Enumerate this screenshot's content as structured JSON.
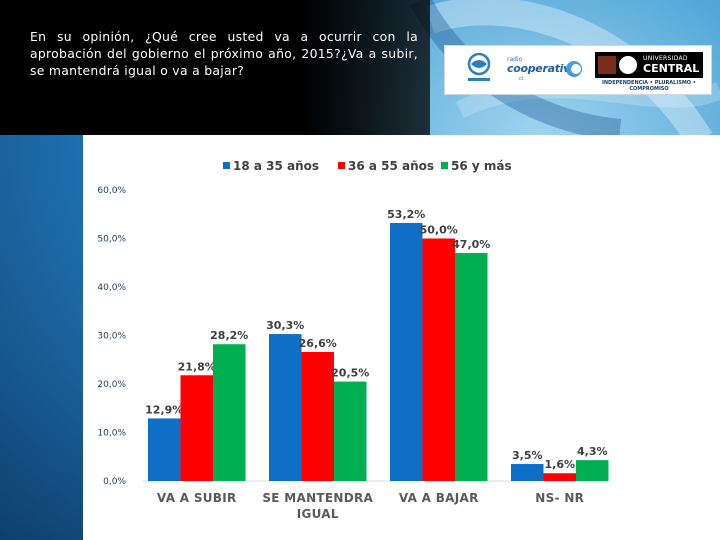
{
  "question": "En su opinión, ¿Qué cree usted va a ocurrir con la aprobación del gobierno el próximo año, 2015?¿Va a subir, se mantendrá igual o va a bajar?",
  "logos": {
    "radio_small": "radio",
    "cooperativa": "cooperativa",
    "cooperativa_sub": "cl.",
    "universidad_small": "UNIVERSIDAD",
    "universidad_main": "CENTRAL",
    "universidad_tagline": "INDEPENDENCIA • PLURALISMO • COMPROMISO"
  },
  "colors": {
    "series1": "#0f6fc6",
    "series2": "#ff0000",
    "series3": "#00b050"
  },
  "chart_data": {
    "type": "bar",
    "categories": [
      "VA A SUBIR",
      "SE MANTENDRA IGUAL",
      "VA A BAJAR",
      "NS- NR"
    ],
    "category_lines": [
      [
        "VA A SUBIR"
      ],
      [
        "SE MANTENDRA",
        "IGUAL"
      ],
      [
        "VA A BAJAR"
      ],
      [
        "NS- NR"
      ]
    ],
    "series": [
      {
        "name": "18 a 35 años",
        "values": [
          12.9,
          30.3,
          53.2,
          3.5
        ],
        "labels": [
          "12,9%",
          "30,3%",
          "53,2%",
          "3,5%"
        ]
      },
      {
        "name": "36 a 55 años",
        "values": [
          21.8,
          26.6,
          50.0,
          1.6
        ],
        "labels": [
          "21,8%",
          "26,6%",
          "50,0%",
          "1,6%"
        ]
      },
      {
        "name": "56 y más",
        "values": [
          28.2,
          20.5,
          47.0,
          4.3
        ],
        "labels": [
          "28,2%",
          "20,5%",
          "47,0%",
          "4,3%"
        ]
      }
    ],
    "yticks": [
      "0,0%",
      "10,0%",
      "20,0%",
      "30,0%",
      "40,0%",
      "50,0%",
      "60,0%"
    ],
    "ylim": [
      0,
      60
    ],
    "legend_position": "top"
  }
}
